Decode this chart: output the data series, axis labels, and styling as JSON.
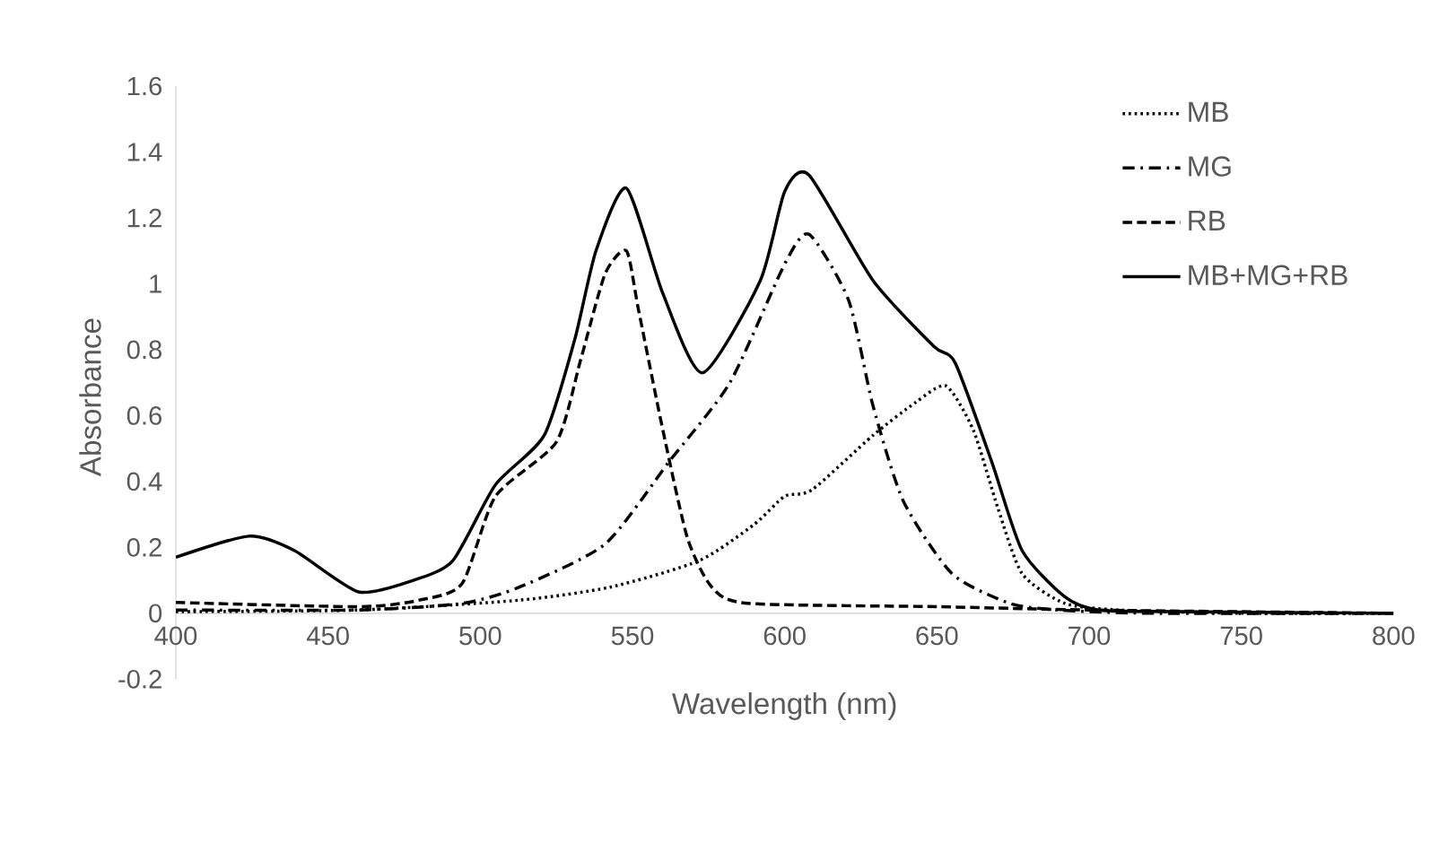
{
  "chart_data": {
    "type": "line",
    "xlabel": "Wavelength (nm)",
    "ylabel": "Absorbance",
    "xlim": [
      400,
      800
    ],
    "xticks": [
      400,
      450,
      500,
      550,
      600,
      650,
      700,
      750,
      800
    ],
    "ylim": [
      -0.2,
      1.6
    ],
    "yticks": [
      -0.2,
      0,
      0.2,
      0.4,
      0.6,
      0.8,
      1,
      1.2,
      1.4,
      1.6
    ],
    "grid": false,
    "legend": "top right",
    "marker": "none",
    "series": [
      {
        "name": "MB",
        "color": "#000000",
        "line_style": "dotted",
        "x": [
          400,
          460,
          513,
          543,
          572,
          590,
          600,
          609,
          629,
          643,
          653,
          662,
          670,
          678,
          692,
          710,
          750,
          800
        ],
        "values": [
          0.005,
          0.01,
          0.04,
          0.08,
          0.16,
          0.27,
          0.355,
          0.375,
          0.54,
          0.64,
          0.69,
          0.555,
          0.32,
          0.12,
          0.03,
          0.01,
          0,
          0
        ]
      },
      {
        "name": "MG",
        "color": "#000000",
        "line_style": "dashdot",
        "x": [
          400,
          460,
          494,
          513,
          541,
          562,
          582,
          600,
          608,
          621,
          629,
          639,
          655,
          674,
          690,
          720,
          800
        ],
        "values": [
          0.01,
          0.01,
          0.03,
          0.08,
          0.21,
          0.46,
          0.7,
          1.06,
          1.15,
          0.95,
          0.63,
          0.34,
          0.12,
          0.03,
          0.01,
          0,
          0
        ]
      },
      {
        "name": "RB",
        "color": "#000000",
        "line_style": "dashed",
        "x": [
          400,
          460,
          480,
          494,
          505,
          525,
          533,
          541,
          548,
          552,
          560,
          568,
          576,
          588,
          650,
          700,
          800
        ],
        "values": [
          0.033,
          0.02,
          0.04,
          0.09,
          0.355,
          0.52,
          0.77,
          1.03,
          1.1,
          0.92,
          0.555,
          0.23,
          0.08,
          0.03,
          0.02,
          0.01,
          0
        ]
      },
      {
        "name": "MB+MG+RB",
        "color": "#000000",
        "line_style": "solid",
        "x": [
          400,
          424,
          439,
          460,
          478,
          491,
          505,
          521,
          531,
          538,
          548,
          560,
          573,
          592,
          600,
          608,
          629,
          649,
          656,
          668,
          678,
          692,
          703,
          730,
          800
        ],
        "values": [
          0.17,
          0.234,
          0.19,
          0.065,
          0.1,
          0.16,
          0.39,
          0.54,
          0.83,
          1.1,
          1.29,
          0.97,
          0.73,
          1.01,
          1.28,
          1.33,
          1.01,
          0.81,
          0.76,
          0.46,
          0.19,
          0.05,
          0.01,
          0.005,
          0
        ]
      }
    ]
  }
}
